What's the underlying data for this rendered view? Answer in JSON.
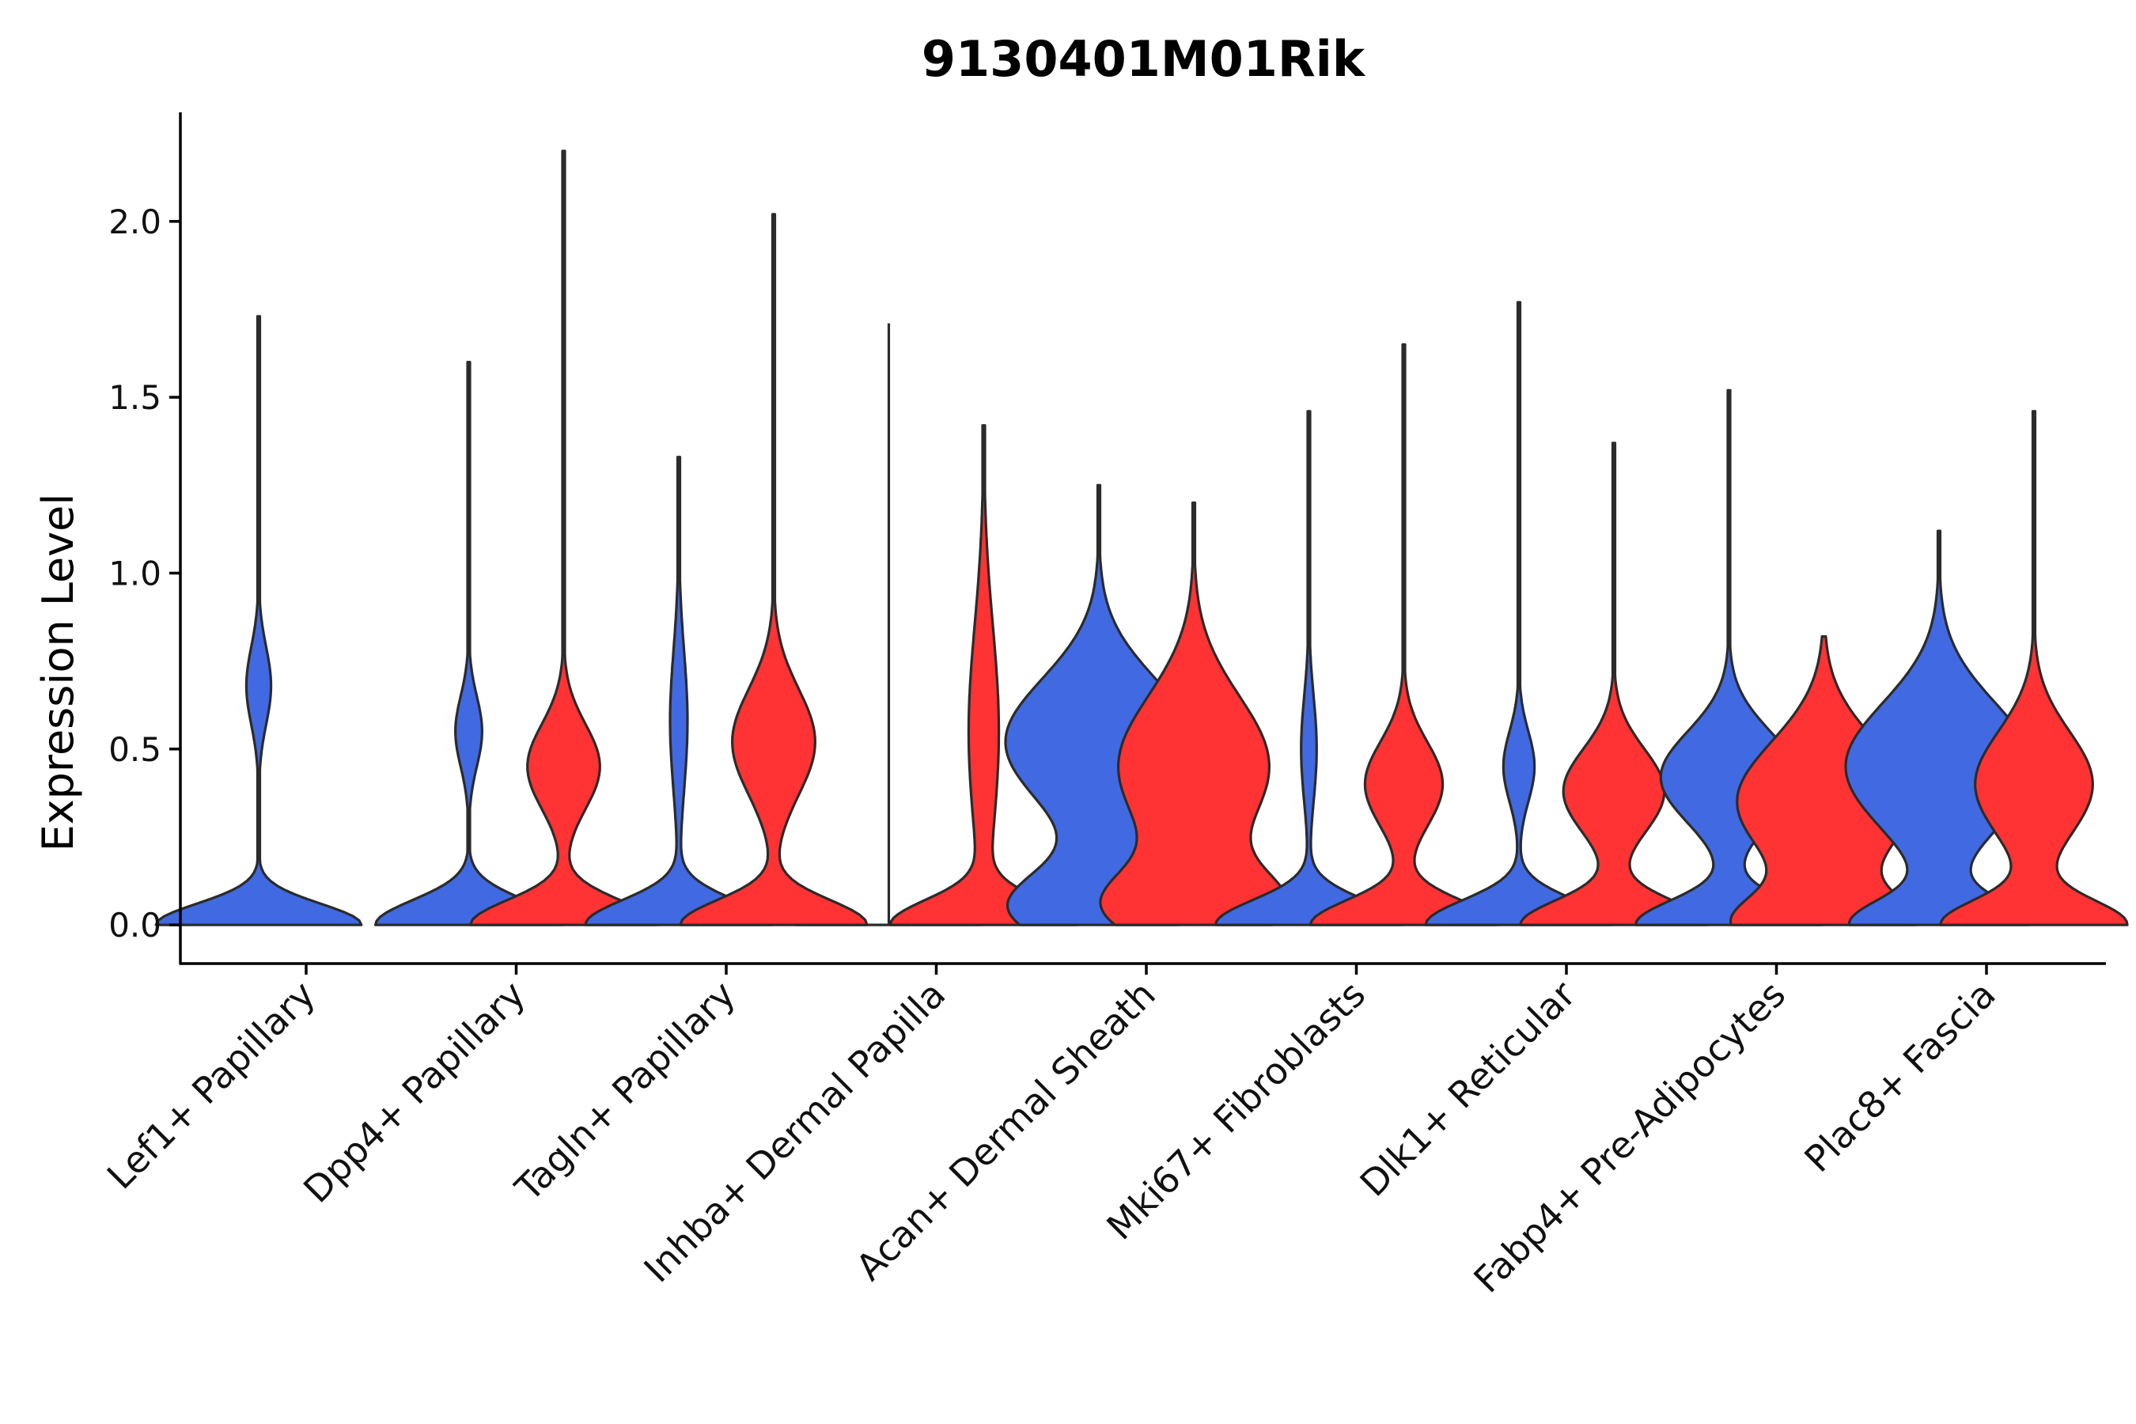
{
  "chart_data": {
    "type": "violin",
    "title": "9130401M01Rik",
    "xlabel": "",
    "ylabel": "Expression Level",
    "ylim": [
      -0.11,
      2.31
    ],
    "yticks": [
      0.0,
      0.5,
      1.0,
      1.5,
      2.0
    ],
    "ytick_labels": [
      "0.0",
      "0.5",
      "1.0",
      "1.5",
      "2.0"
    ],
    "legend": "none",
    "colors": {
      "group1": "#4169E1",
      "group2": "#FF3333",
      "outline": "#2b2b2b"
    },
    "categories": [
      "Lef1+ Papillary",
      "Dpp4+ Papillary",
      "Tagln+ Papillary",
      "Inhba+ Dermal Papilla",
      "Acan+ Dermal Sheath",
      "Mki67+ Fibroblasts",
      "Dlk1+ Reticular",
      "Fabp4+ Pre-Adipocytes",
      "Plac8+ Fascia"
    ],
    "violins": [
      {
        "category": 0,
        "group": "blue",
        "max": 1.73,
        "modes": [
          [
            0.0,
            1.0,
            0.06
          ],
          [
            0.68,
            0.12,
            0.11
          ]
        ],
        "zero_spread": 1.4
      },
      {
        "category": 1,
        "group": "blue",
        "max": 1.6,
        "modes": [
          [
            0.0,
            0.7,
            0.07
          ],
          [
            0.55,
            0.1,
            0.1
          ]
        ]
      },
      {
        "category": 1,
        "group": "red",
        "max": 2.2,
        "modes": [
          [
            0.0,
            0.72,
            0.07
          ],
          [
            0.45,
            0.28,
            0.12
          ]
        ]
      },
      {
        "category": 2,
        "group": "blue",
        "max": 1.33,
        "modes": [
          [
            0.0,
            0.75,
            0.07
          ],
          [
            0.58,
            0.07,
            0.2
          ]
        ]
      },
      {
        "category": 2,
        "group": "red",
        "max": 2.02,
        "modes": [
          [
            0.0,
            0.72,
            0.07
          ],
          [
            0.52,
            0.32,
            0.15
          ]
        ]
      },
      {
        "category": 3,
        "group": "blue",
        "max": 1.71,
        "modes": [
          [
            0.0,
            0.6,
            0.015
          ]
        ],
        "flat": true
      },
      {
        "category": 3,
        "group": "red",
        "max": 1.42,
        "modes": [
          [
            0.0,
            0.72,
            0.07
          ],
          [
            0.55,
            0.12,
            0.3
          ]
        ]
      },
      {
        "category": 4,
        "group": "blue",
        "max": 1.25,
        "modes": [
          [
            0.05,
            0.85,
            0.1
          ],
          [
            0.52,
            0.9,
            0.18
          ]
        ]
      },
      {
        "category": 4,
        "group": "red",
        "max": 1.2,
        "modes": [
          [
            0.05,
            0.82,
            0.1
          ],
          [
            0.45,
            0.75,
            0.2
          ]
        ]
      },
      {
        "category": 5,
        "group": "blue",
        "max": 1.46,
        "modes": [
          [
            0.0,
            0.72,
            0.07
          ],
          [
            0.5,
            0.06,
            0.15
          ]
        ]
      },
      {
        "category": 5,
        "group": "red",
        "max": 1.65,
        "modes": [
          [
            0.0,
            0.72,
            0.07
          ],
          [
            0.4,
            0.3,
            0.12
          ]
        ]
      },
      {
        "category": 6,
        "group": "blue",
        "max": 1.77,
        "modes": [
          [
            0.0,
            0.72,
            0.07
          ],
          [
            0.45,
            0.12,
            0.1
          ]
        ]
      },
      {
        "category": 6,
        "group": "red",
        "max": 1.37,
        "modes": [
          [
            0.0,
            0.7,
            0.07
          ],
          [
            0.38,
            0.38,
            0.12
          ]
        ]
      },
      {
        "category": 7,
        "group": "blue",
        "max": 1.52,
        "modes": [
          [
            0.0,
            0.75,
            0.07
          ],
          [
            0.42,
            0.55,
            0.13
          ]
        ]
      },
      {
        "category": 7,
        "group": "red",
        "max": 0.82,
        "modes": [
          [
            0.0,
            0.9,
            0.08
          ],
          [
            0.35,
            0.95,
            0.17
          ]
        ]
      },
      {
        "category": 8,
        "group": "blue",
        "max": 1.12,
        "modes": [
          [
            0.0,
            0.78,
            0.07
          ],
          [
            0.45,
            0.85,
            0.18
          ]
        ]
      },
      {
        "category": 8,
        "group": "red",
        "max": 1.46,
        "modes": [
          [
            0.0,
            0.78,
            0.07
          ],
          [
            0.4,
            0.5,
            0.15
          ]
        ]
      }
    ]
  }
}
